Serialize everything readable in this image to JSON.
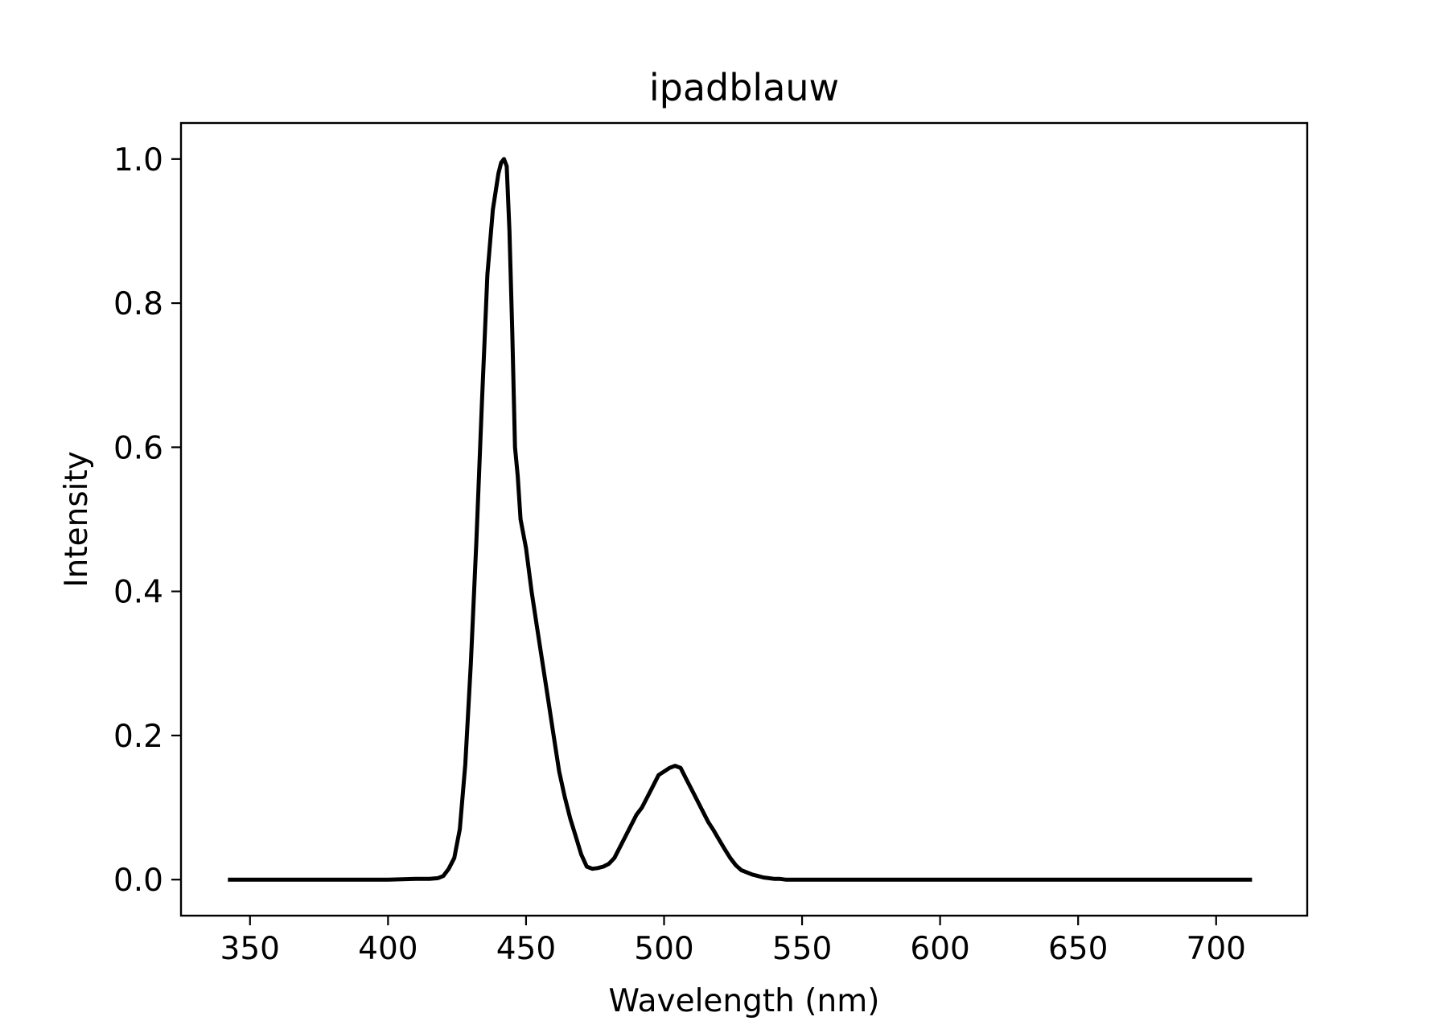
{
  "chart_data": {
    "type": "line",
    "title": "ipadblauw",
    "xlabel": "Wavelength (nm)",
    "ylabel": "Intensity",
    "xlim": [
      325,
      733
    ],
    "ylim": [
      -0.05,
      1.05
    ],
    "grid": false,
    "legend": "none",
    "x_ticks": [
      350,
      400,
      450,
      500,
      550,
      600,
      650,
      700
    ],
    "x_tick_labels": [
      "350",
      "400",
      "450",
      "500",
      "550",
      "600",
      "650",
      "700"
    ],
    "y_ticks": [
      0.0,
      0.2,
      0.4,
      0.6,
      0.8,
      1.0
    ],
    "y_tick_labels": [
      "0.0",
      "0.2",
      "0.4",
      "0.6",
      "0.8",
      "1.0"
    ],
    "series": [
      {
        "color": "#000000",
        "x": [
          342,
          380,
          400,
          410,
          415,
          418,
          420,
          422,
          424,
          426,
          428,
          430,
          432,
          434,
          436,
          438,
          440,
          441,
          442,
          443,
          444,
          445,
          446,
          447,
          448,
          450,
          452,
          454,
          456,
          458,
          460,
          462,
          464,
          466,
          468,
          470,
          472,
          474,
          476,
          478,
          480,
          482,
          484,
          486,
          488,
          490,
          492,
          494,
          496,
          498,
          500,
          502,
          504,
          506,
          508,
          510,
          512,
          514,
          516,
          518,
          520,
          522,
          524,
          526,
          528,
          530,
          532,
          534,
          536,
          538,
          540,
          542,
          544,
          546,
          548,
          550,
          552,
          554,
          556,
          560,
          570,
          600,
          650,
          700,
          713
        ],
        "y": [
          0.0,
          0.0,
          0.0,
          0.001,
          0.001,
          0.002,
          0.005,
          0.015,
          0.03,
          0.07,
          0.16,
          0.3,
          0.47,
          0.66,
          0.84,
          0.93,
          0.98,
          0.995,
          1.0,
          0.99,
          0.9,
          0.76,
          0.6,
          0.56,
          0.5,
          0.46,
          0.4,
          0.35,
          0.3,
          0.25,
          0.2,
          0.15,
          0.115,
          0.085,
          0.06,
          0.035,
          0.018,
          0.015,
          0.016,
          0.018,
          0.022,
          0.03,
          0.045,
          0.06,
          0.075,
          0.09,
          0.1,
          0.115,
          0.13,
          0.145,
          0.15,
          0.155,
          0.158,
          0.155,
          0.14,
          0.125,
          0.11,
          0.095,
          0.08,
          0.068,
          0.055,
          0.042,
          0.03,
          0.02,
          0.013,
          0.01,
          0.007,
          0.005,
          0.003,
          0.002,
          0.001,
          0.001,
          0.0,
          0.0,
          0.0,
          0.0,
          0.0,
          0.0,
          0.0,
          0.0,
          0.0,
          0.0,
          0.0,
          0.0,
          0.0
        ]
      }
    ]
  }
}
